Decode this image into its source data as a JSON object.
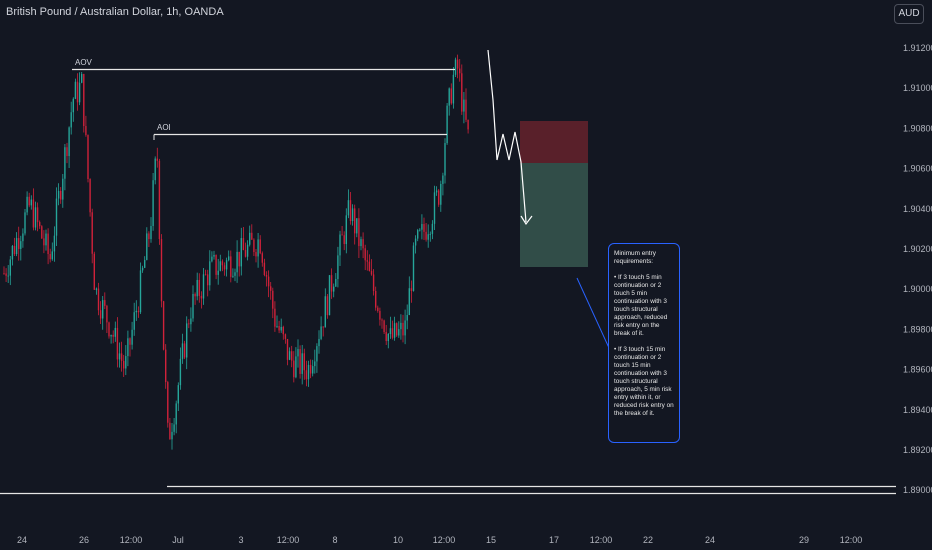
{
  "header": {
    "title": "British Pound / Australian Dollar, 1h, OANDA",
    "currency_button": "AUD"
  },
  "chart_data": {
    "type": "candlestick",
    "symbol": "British Pound / Australian Dollar",
    "timeframe": "1h",
    "source": "OANDA",
    "y_ticks": [
      "1.91200",
      "1.91000",
      "1.90800",
      "1.90600",
      "1.90400",
      "1.90200",
      "1.90000",
      "1.89800",
      "1.89600",
      "1.89400",
      "1.89200",
      "1.89000"
    ],
    "ylim": [
      1.8895,
      1.9128
    ],
    "x_ticks": [
      "24",
      "26",
      "12:00",
      "Jul",
      "3",
      "12:00",
      "8",
      "10",
      "12:00",
      "15",
      "17",
      "12:00",
      "22",
      "24",
      "29",
      "12:00"
    ],
    "annotations": {
      "aov": {
        "label": "AOV",
        "price": 1.9108
      },
      "aoi": {
        "label": "AOI",
        "price": 1.9079
      },
      "support_price": 1.8912
    },
    "position": {
      "stop_top": 1.9085,
      "entry": 1.9067,
      "target": 1.9017,
      "stop_color": "#5d212b",
      "target_color": "#33504b"
    },
    "colors": {
      "up": "#26a69a",
      "down": "#d0223a",
      "background": "#131722",
      "note_border": "#2962ff"
    }
  },
  "note": {
    "text": "Minimum entry requirements:\n\n• If 3 touch 5 min continuation or 2 touch 5 min continuation with 3 touch structural approach, reduced risk entry on the break of it.\n\n• If 3 touch 15 min continuation or 2 touch 15 min continuation with 3 touch structural approach, 5 min risk entry within it, or reduced risk entry on the break of it."
  }
}
